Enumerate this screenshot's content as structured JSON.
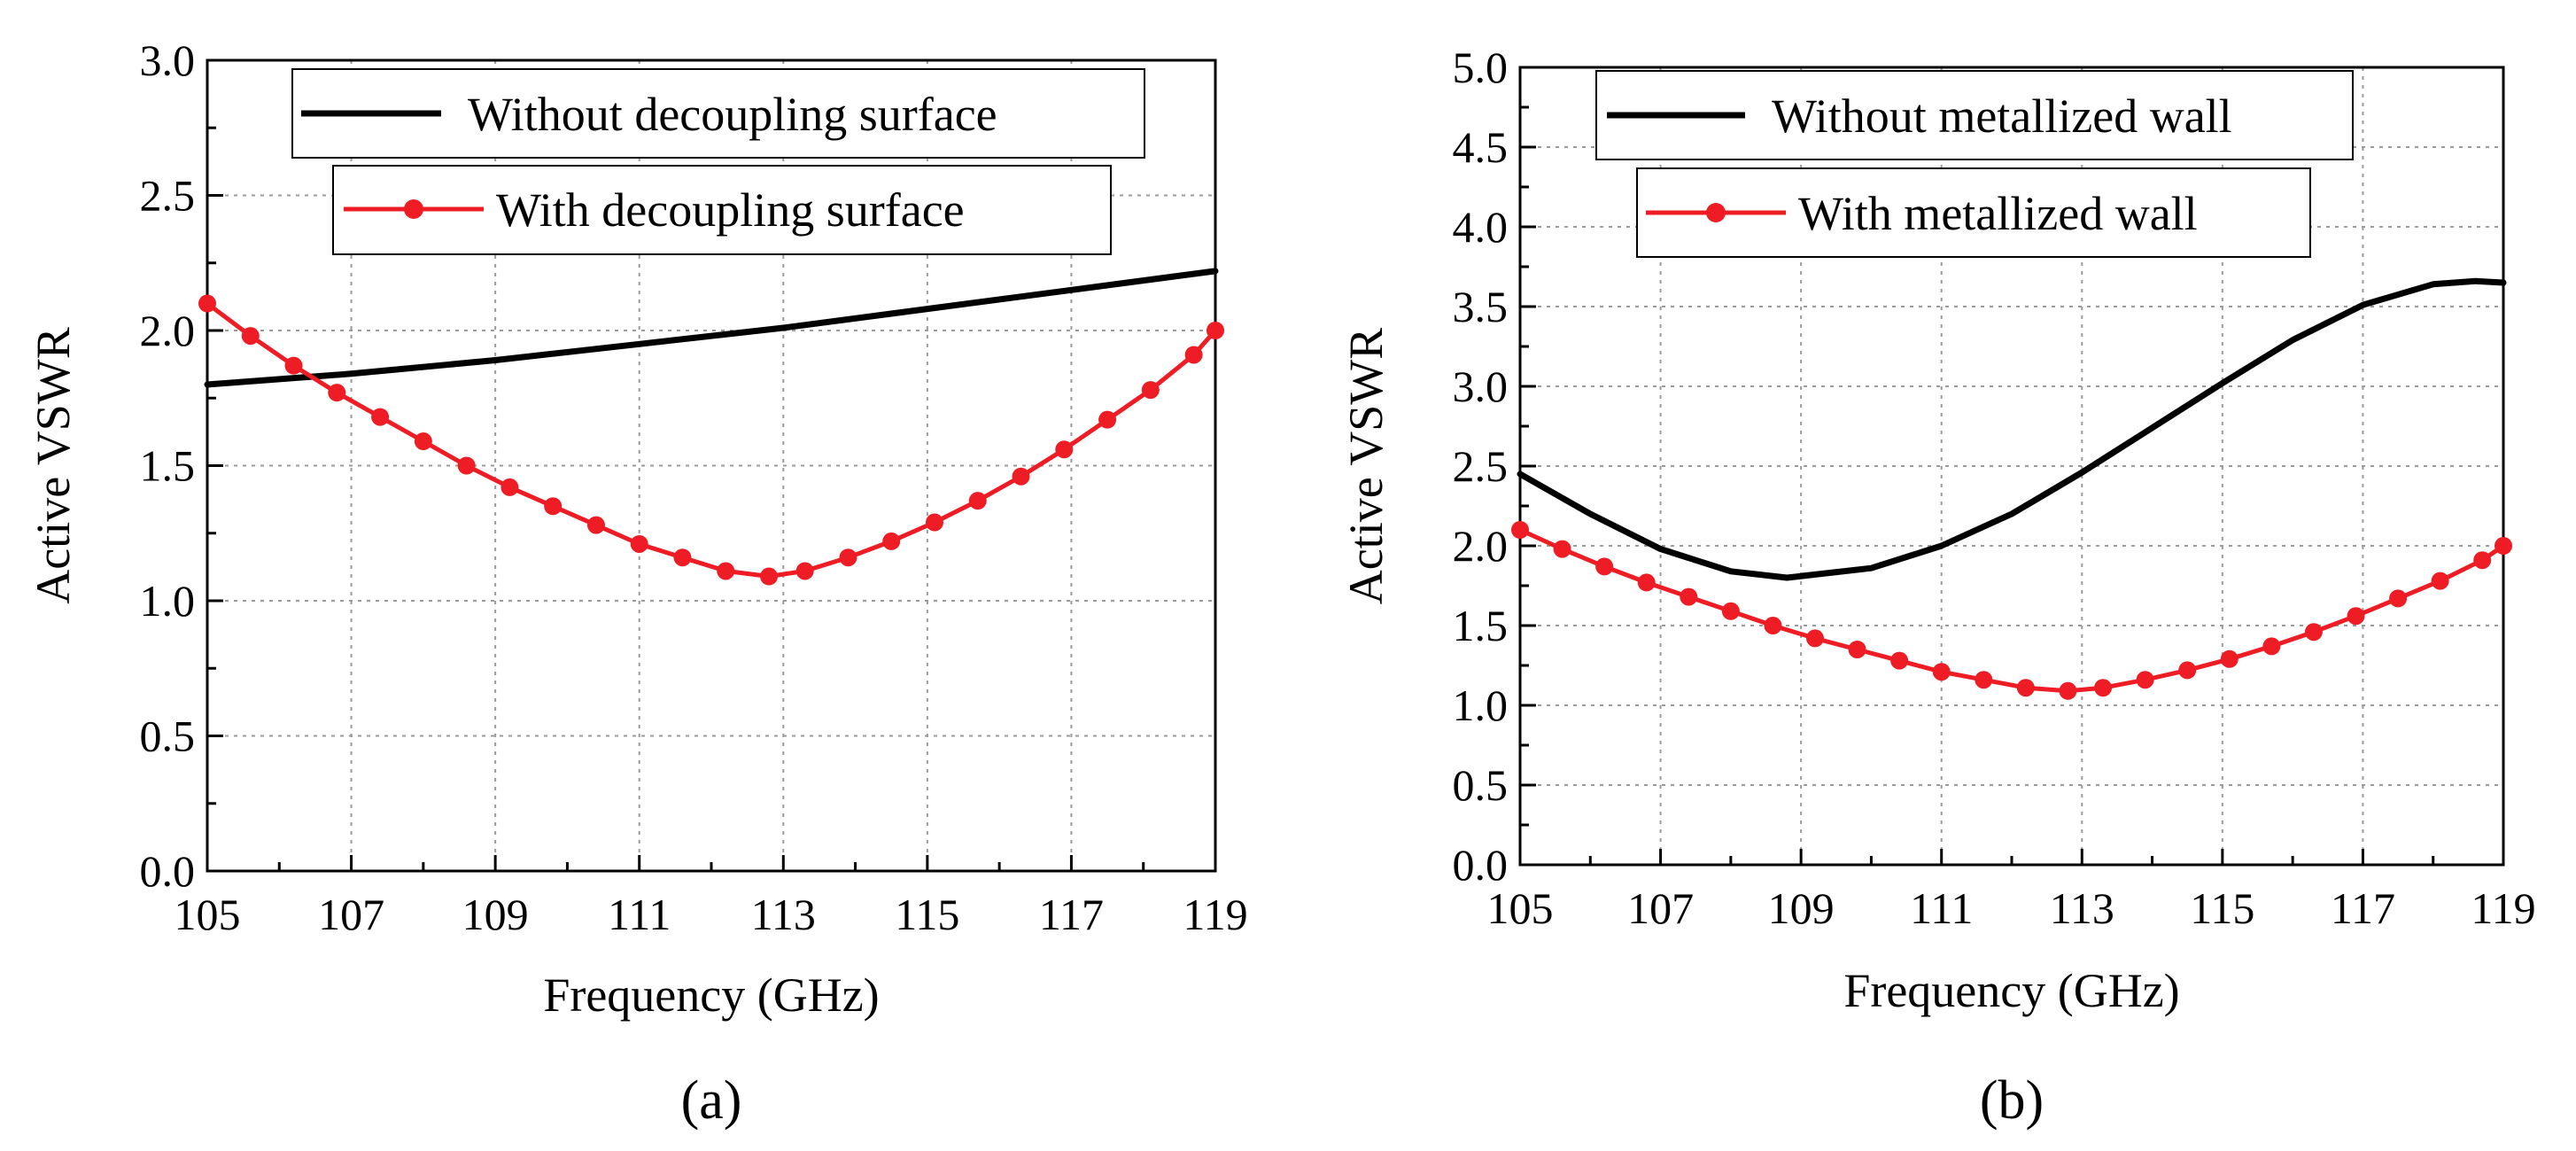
{
  "chart_data": [
    {
      "type": "line",
      "panel_label": "(a)",
      "xlabel": "Frequency (GHz)",
      "ylabel": "Active VSWR",
      "xlim": [
        105,
        119
      ],
      "ylim": [
        0.0,
        3.0
      ],
      "xticks": [
        "105",
        "107",
        "109",
        "111",
        "113",
        "115",
        "117",
        "119"
      ],
      "yticks": [
        "0.0",
        "0.5",
        "1.0",
        "1.5",
        "2.0",
        "2.5",
        "3.0"
      ],
      "grid": true,
      "legend_position": "top",
      "series": [
        {
          "name": "Without decoupling surface",
          "color": "#000000",
          "markers": false,
          "x": [
            105,
            107,
            109,
            111,
            113,
            115,
            117,
            119
          ],
          "y": [
            1.8,
            1.84,
            1.89,
            1.95,
            2.01,
            2.08,
            2.15,
            2.22
          ]
        },
        {
          "name": "With decoupling surface",
          "color": "#ee1c24",
          "markers": true,
          "x": [
            105.0,
            105.6,
            106.2,
            106.8,
            107.4,
            108.0,
            108.6,
            109.2,
            109.8,
            110.4,
            111.0,
            111.6,
            112.2,
            112.8,
            113.3,
            113.9,
            114.5,
            115.1,
            115.7,
            116.3,
            116.9,
            117.5,
            118.1,
            118.7,
            119.0
          ],
          "y": [
            2.1,
            1.98,
            1.87,
            1.77,
            1.68,
            1.59,
            1.5,
            1.42,
            1.35,
            1.28,
            1.21,
            1.16,
            1.11,
            1.09,
            1.11,
            1.16,
            1.22,
            1.29,
            1.37,
            1.46,
            1.56,
            1.67,
            1.78,
            1.91,
            2.0
          ]
        }
      ]
    },
    {
      "type": "line",
      "panel_label": "(b)",
      "xlabel": "Frequency (GHz)",
      "ylabel": "Active VSWR",
      "xlim": [
        105,
        119
      ],
      "ylim": [
        0.0,
        5.0
      ],
      "xticks": [
        "105",
        "107",
        "109",
        "111",
        "113",
        "115",
        "117",
        "119"
      ],
      "yticks": [
        "0.0",
        "0.5",
        "1.0",
        "1.5",
        "2.0",
        "2.5",
        "3.0",
        "3.5",
        "4.0",
        "4.5",
        "5.0"
      ],
      "grid": true,
      "legend_position": "top-left",
      "series": [
        {
          "name": "Without metallized wall",
          "color": "#000000",
          "markers": false,
          "x": [
            105,
            106,
            107,
            108,
            108.8,
            110,
            111,
            112,
            113,
            114,
            115,
            116,
            117,
            118,
            118.6,
            119
          ],
          "y": [
            2.45,
            2.2,
            1.98,
            1.84,
            1.8,
            1.86,
            2.0,
            2.2,
            2.46,
            2.74,
            3.02,
            3.29,
            3.51,
            3.64,
            3.66,
            3.65
          ]
        },
        {
          "name": "With metallized wall",
          "color": "#ee1c24",
          "markers": true,
          "x": [
            105.0,
            105.6,
            106.2,
            106.8,
            107.4,
            108.0,
            108.6,
            109.2,
            109.8,
            110.4,
            111.0,
            111.6,
            112.2,
            112.8,
            113.3,
            113.9,
            114.5,
            115.1,
            115.7,
            116.3,
            116.9,
            117.5,
            118.1,
            118.7,
            119.0
          ],
          "y": [
            2.1,
            1.98,
            1.87,
            1.77,
            1.68,
            1.59,
            1.5,
            1.42,
            1.35,
            1.28,
            1.21,
            1.16,
            1.11,
            1.09,
            1.11,
            1.16,
            1.22,
            1.29,
            1.37,
            1.46,
            1.56,
            1.67,
            1.78,
            1.91,
            2.0
          ]
        }
      ]
    }
  ]
}
